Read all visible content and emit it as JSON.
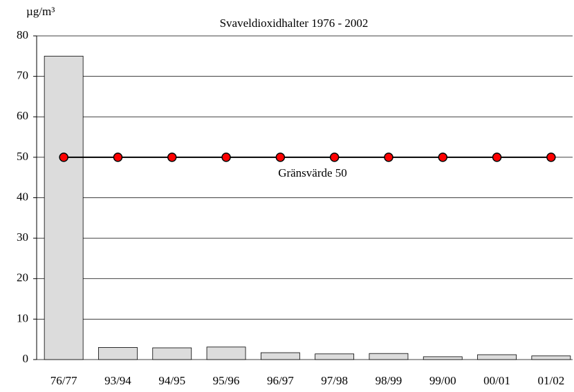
{
  "chart_data": {
    "type": "bar",
    "title": "Svaveldioxidhalter 1976 - 2002",
    "y_label": "µg/m³",
    "categories": [
      "76/77",
      "93/94",
      "94/95",
      "95/96",
      "96/97",
      "97/98",
      "98/99",
      "99/00",
      "00/01",
      "01/02"
    ],
    "values": [
      75,
      3,
      2.9,
      3.1,
      1.7,
      1.4,
      1.5,
      0.7,
      1.2,
      0.9
    ],
    "color": "#dcdcdc",
    "line": {
      "values": [
        50,
        50,
        50,
        50,
        50,
        50,
        50,
        50,
        50,
        50
      ],
      "color": "#000000",
      "marker_color": "#ff0000"
    },
    "annotation": "Gränsvärde 50",
    "ylim": [
      0,
      80
    ],
    "yticks": [
      0,
      10,
      20,
      30,
      40,
      50,
      60,
      70,
      80
    ],
    "grid": true
  }
}
